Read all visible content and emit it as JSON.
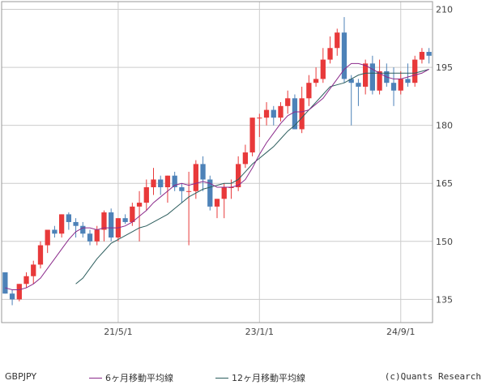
{
  "chart_data": {
    "type": "candlestick",
    "symbol": "GBPJPY",
    "credit": "(c)Quants Research",
    "y_axis": {
      "position": "right",
      "min": 129,
      "max": 212,
      "ticks": [
        135,
        150,
        165,
        180,
        195,
        210
      ]
    },
    "x_axis": {
      "tick_labels": [
        {
          "label": "21/5/1",
          "index": 16
        },
        {
          "label": "23/1/1",
          "index": 36
        },
        {
          "label": "24/9/1",
          "index": 56
        }
      ]
    },
    "colors": {
      "up": "#e8393a",
      "down": "#4d82b8",
      "ma6": "#8b2a8b",
      "ma12": "#2d5e5e",
      "grid": "#cccccc",
      "frame": "#999999"
    },
    "ma_legend": [
      {
        "label": "6ヶ月移動平均線",
        "key": "ma6"
      },
      {
        "label": "12ヶ月移動平均線",
        "key": "ma12"
      }
    ],
    "candles": [
      [
        142,
        142,
        136.5,
        136.5
      ],
      [
        136.5,
        137.5,
        133.5,
        135
      ],
      [
        135,
        139,
        134.5,
        139
      ],
      [
        139,
        142,
        138,
        141
      ],
      [
        141,
        145,
        139,
        144
      ],
      [
        144,
        150,
        143,
        149
      ],
      [
        149,
        153,
        147,
        153
      ],
      [
        153,
        154,
        151,
        152
      ],
      [
        152,
        157,
        151,
        157
      ],
      [
        157,
        157.5,
        153,
        155
      ],
      [
        155,
        156,
        151,
        154
      ],
      [
        154,
        155,
        151,
        152
      ],
      [
        152,
        153,
        149,
        150
      ],
      [
        150,
        154,
        149,
        153
      ],
      [
        153,
        158,
        150,
        157.5
      ],
      [
        157.5,
        158.5,
        150,
        151
      ],
      [
        151,
        156,
        150,
        156
      ],
      [
        156,
        157,
        154.5,
        155
      ],
      [
        155,
        160,
        154,
        159
      ],
      [
        159,
        163,
        150,
        160
      ],
      [
        160,
        166,
        158,
        164
      ],
      [
        164,
        169,
        162,
        166
      ],
      [
        166,
        167,
        162,
        164
      ],
      [
        164,
        167,
        160,
        167
      ],
      [
        167,
        168,
        163,
        164
      ],
      [
        164,
        165,
        160,
        163
      ],
      [
        163,
        168,
        149,
        163
      ],
      [
        163,
        171,
        161,
        170
      ],
      [
        170,
        172,
        163,
        166
      ],
      [
        166,
        167,
        158,
        159
      ],
      [
        159,
        161,
        156,
        161
      ],
      [
        161,
        165,
        156,
        164
      ],
      [
        164,
        166,
        161,
        164
      ],
      [
        164,
        172,
        163,
        170
      ],
      [
        170,
        175,
        169,
        173
      ],
      [
        173,
        182,
        172,
        182
      ],
      [
        182,
        183,
        177,
        182
      ],
      [
        182,
        186,
        180,
        184
      ],
      [
        184,
        185,
        180,
        182
      ],
      [
        182,
        186,
        181,
        185
      ],
      [
        185,
        189,
        183,
        187
      ],
      [
        187,
        188,
        179,
        179
      ],
      [
        179,
        190,
        178,
        187
      ],
      [
        187,
        193,
        185,
        191
      ],
      [
        191,
        195,
        190,
        192
      ],
      [
        192,
        200,
        191,
        197
      ],
      [
        197,
        203,
        196,
        200
      ],
      [
        200,
        205,
        198,
        204
      ],
      [
        204,
        208,
        191,
        192
      ],
      [
        192,
        193,
        180,
        191
      ],
      [
        191,
        192,
        185,
        190
      ],
      [
        190,
        197,
        188,
        196
      ],
      [
        196,
        198,
        188,
        189
      ],
      [
        189,
        197,
        188,
        194
      ],
      [
        194,
        196,
        190,
        191
      ],
      [
        191,
        195,
        185,
        189
      ],
      [
        189,
        194,
        188,
        192
      ],
      [
        192,
        196,
        190,
        191
      ],
      [
        191,
        198,
        190,
        197
      ],
      [
        197,
        200,
        196,
        199
      ],
      [
        199,
        200,
        196,
        198
      ]
    ],
    "ma6": [
      138,
      137.5,
      137.5,
      138,
      139,
      140.5,
      143,
      145.5,
      148,
      150.5,
      152.5,
      153.5,
      153.5,
      153,
      153.5,
      153.5,
      153.5,
      154,
      155,
      156.5,
      158,
      160,
      161.5,
      163,
      164.5,
      165,
      164.5,
      165,
      165.5,
      165,
      164,
      164,
      164,
      164.5,
      166,
      169,
      172.5,
      175.5,
      178,
      180.5,
      182.5,
      183.5,
      183.5,
      184,
      185.5,
      187,
      189.5,
      192,
      194.5,
      196,
      196,
      195.5,
      194.5,
      193.5,
      192.5,
      192,
      192,
      192.5,
      193,
      193.5,
      194.5
    ],
    "ma12": [
      null,
      null,
      null,
      null,
      null,
      null,
      null,
      null,
      null,
      null,
      139,
      140.5,
      143,
      145.5,
      147.5,
      149.5,
      150.5,
      151.5,
      152.5,
      153.5,
      154,
      155,
      156,
      157,
      158.5,
      160,
      161.5,
      162.5,
      163.5,
      164,
      164.5,
      165,
      165,
      166,
      168,
      170,
      171.5,
      173,
      174.5,
      176.5,
      178.5,
      180,
      182,
      184,
      186,
      188,
      190,
      190.5,
      191,
      192,
      193,
      193.5,
      193.5,
      193.5,
      193.5,
      193.5,
      193.5,
      193.5,
      193.5,
      194,
      194.5
    ]
  }
}
